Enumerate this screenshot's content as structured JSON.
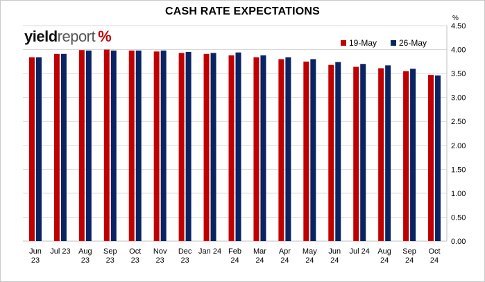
{
  "title": "CASH RATE EXPECTATIONS",
  "unit": "%",
  "logo": {
    "word1": "yield",
    "word2": "report",
    "symbol": "%"
  },
  "colors": {
    "series1": "#c00000",
    "series2": "#0a2463",
    "gridline": "#d9d9d9",
    "axis": "#bfbfbf"
  },
  "chart_data": {
    "type": "bar",
    "title": "CASH RATE EXPECTATIONS",
    "y_axis_position": "right",
    "ylabel": "%",
    "ylim": [
      0,
      4.5
    ],
    "yticks": [
      "0.00",
      "0.50",
      "1.00",
      "1.50",
      "2.00",
      "2.50",
      "3.00",
      "3.50",
      "4.00",
      "4.50"
    ],
    "grid": "horizontal",
    "legend_position": "top-right",
    "categories": [
      [
        "Jun",
        "23"
      ],
      [
        "Jul 23"
      ],
      [
        "Aug",
        "23"
      ],
      [
        "Sep",
        "23"
      ],
      [
        "Oct",
        "23"
      ],
      [
        "Nov",
        "23"
      ],
      [
        "Dec",
        "23"
      ],
      [
        "Jan 24"
      ],
      [
        "Feb",
        "24"
      ],
      [
        "Mar",
        "24"
      ],
      [
        "Apr",
        "24"
      ],
      [
        "May",
        "24"
      ],
      [
        "Jun",
        "24"
      ],
      [
        "Jul 24"
      ],
      [
        "Aug",
        "24"
      ],
      [
        "Sep",
        "24"
      ],
      [
        "Oct",
        "24"
      ]
    ],
    "series": [
      {
        "name": "19-May",
        "color": "#c00000",
        "values": [
          3.84,
          3.91,
          3.99,
          4.0,
          3.98,
          3.96,
          3.93,
          3.91,
          3.88,
          3.84,
          3.8,
          3.75,
          3.68,
          3.64,
          3.61,
          3.55,
          3.47
        ]
      },
      {
        "name": "26-May",
        "color": "#0a2463",
        "values": [
          3.84,
          3.91,
          3.98,
          3.98,
          3.98,
          3.98,
          3.95,
          3.93,
          3.94,
          3.88,
          3.84,
          3.8,
          3.74,
          3.7,
          3.67,
          3.6,
          3.46
        ]
      }
    ]
  }
}
